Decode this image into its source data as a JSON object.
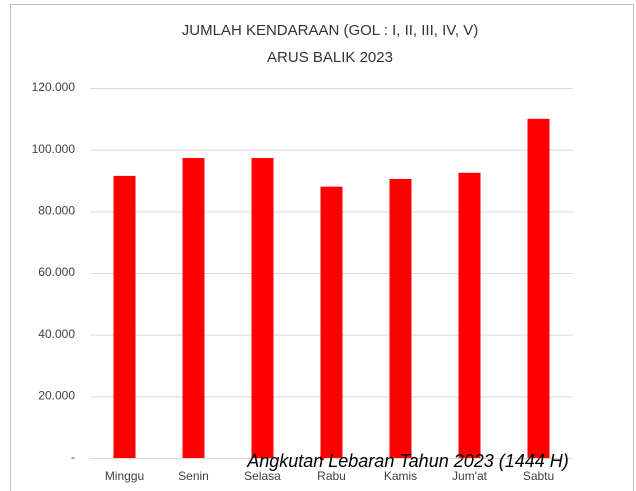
{
  "chart_data": {
    "type": "bar",
    "title": "JUMLAH KENDARAAN (GOL : I, II, III, IV, V)",
    "subtitle": "ARUS BALIK 2023",
    "annotation": "Angkutan Lebaran Tahun 2023 (1444 H)",
    "categories": [
      "Minggu",
      "Senin",
      "Selasa",
      "Rabu",
      "Kamis",
      "Jum'at",
      "Sabtu"
    ],
    "values": [
      91500,
      97300,
      97300,
      88000,
      90500,
      92500,
      110000
    ],
    "color": "#ff0000",
    "ylim": [
      0,
      120000
    ],
    "yticks": [
      {
        "value": 0,
        "label": "-"
      },
      {
        "value": 20000,
        "label": "20.000"
      },
      {
        "value": 40000,
        "label": "40.000"
      },
      {
        "value": 60000,
        "label": "60.000"
      },
      {
        "value": 80000,
        "label": "80.000"
      },
      {
        "value": 100000,
        "label": "100.000"
      },
      {
        "value": 120000,
        "label": "120.000"
      }
    ],
    "grid": true
  }
}
